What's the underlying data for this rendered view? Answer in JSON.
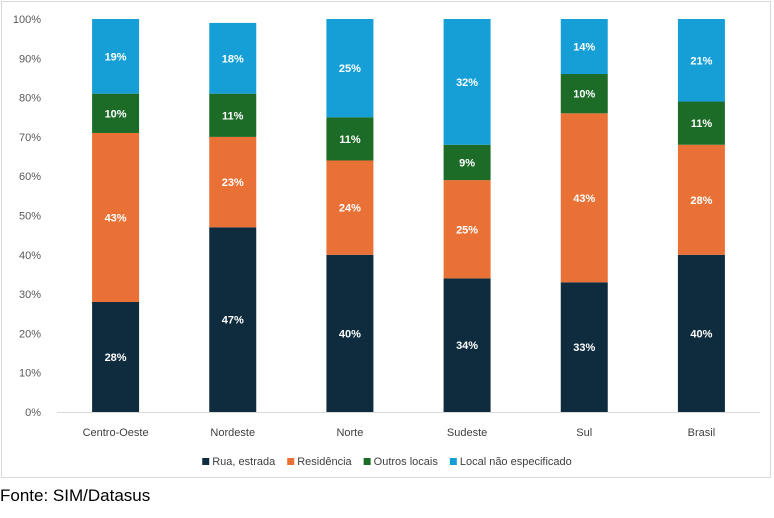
{
  "chart_data": {
    "type": "bar",
    "stacked": true,
    "categories": [
      "Centro-Oeste",
      "Nordeste",
      "Norte",
      "Sudeste",
      "Sul",
      "Brasil"
    ],
    "series": [
      {
        "name": "Rua, estrada",
        "color": "#0e2c3e",
        "values": [
          28,
          47,
          40,
          34,
          33,
          40
        ],
        "labels": [
          "28%",
          "47%",
          "40%",
          "34%",
          "33%",
          "40%"
        ]
      },
      {
        "name": "Residência",
        "color": "#ea7136",
        "values": [
          43,
          23,
          24,
          25,
          43,
          28
        ],
        "labels": [
          "43%",
          "23%",
          "24%",
          "25%",
          "43%",
          "28%"
        ]
      },
      {
        "name": "Outros locais",
        "color": "#1c6b27",
        "values": [
          10,
          11,
          11,
          9,
          10,
          11
        ],
        "labels": [
          "10%",
          "11%",
          "11%",
          "9%",
          "10%",
          "11%"
        ]
      },
      {
        "name": "Local não especificado",
        "color": "#169fd6",
        "values": [
          19,
          18,
          25,
          32,
          14,
          21
        ],
        "labels": [
          "19%",
          "18%",
          "25%",
          "32%",
          "14%",
          "21%"
        ]
      }
    ],
    "y_ticks": [
      "0%",
      "10%",
      "20%",
      "30%",
      "40%",
      "50%",
      "60%",
      "70%",
      "80%",
      "90%",
      "100%"
    ],
    "ylim": [
      0,
      100
    ],
    "grid": false,
    "legend_position": "bottom"
  },
  "source": "Fonte: SIM/Datasus"
}
